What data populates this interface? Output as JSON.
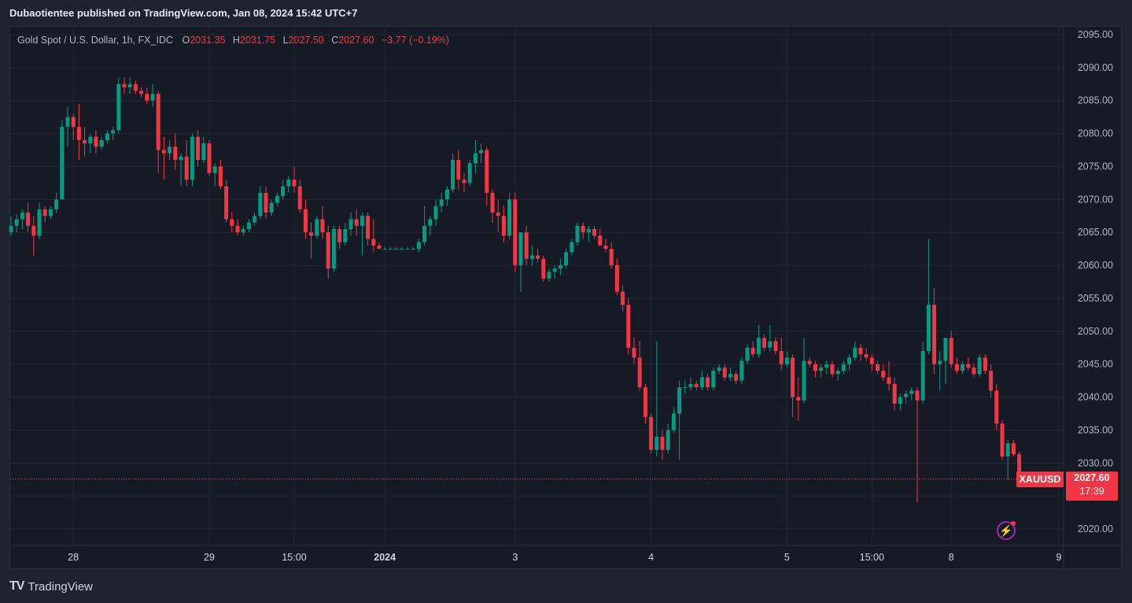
{
  "header": {
    "published": "Dubaotientee published on TradingView.com, Jan 08, 2024 15:42 UTC+7"
  },
  "legend": {
    "symbol": "Gold Spot / U.S. Dollar, 1h, FX_IDC",
    "o_label": "O",
    "o_value": "2031.35",
    "h_label": "H",
    "h_value": "2031.75",
    "l_label": "L",
    "l_value": "2027.50",
    "c_label": "C",
    "c_value": "2027.60",
    "change": "−3.77 (−0.19%)"
  },
  "price_tags": {
    "symbol": "XAUUSD",
    "last": "2027.60",
    "countdown": "17:39"
  },
  "footer": {
    "brand": "TradingView",
    "logo": "TV"
  },
  "icons": {
    "bolt": "lightning-icon"
  },
  "colors": {
    "up": "#089981",
    "down": "#f23645",
    "background": "#161a25",
    "grid": "#232733"
  },
  "chart_data": {
    "type": "candlestick",
    "symbol": "XAUUSD",
    "interval": "1h",
    "ylim": [
      2015,
      2097
    ],
    "y_ticks": [
      "2095.00",
      "2090.00",
      "2085.00",
      "2080.00",
      "2075.00",
      "2070.00",
      "2065.00",
      "2060.00",
      "2055.00",
      "2050.00",
      "2045.00",
      "2040.00",
      "2035.00",
      "2030.00",
      "2020.00"
    ],
    "x_ticks": [
      {
        "label": "28",
        "index": 11,
        "bold": false
      },
      {
        "label": "29",
        "index": 35,
        "bold": false
      },
      {
        "label": "15:00",
        "index": 50,
        "bold": false
      },
      {
        "label": "2024",
        "index": 66,
        "bold": true
      },
      {
        "label": "3",
        "index": 89,
        "bold": false
      },
      {
        "label": "4",
        "index": 113,
        "bold": false
      },
      {
        "label": "5",
        "index": 137,
        "bold": false
      },
      {
        "label": "15:00",
        "index": 152,
        "bold": false
      },
      {
        "label": "8",
        "index": 166,
        "bold": false
      },
      {
        "label": "9",
        "index": 185,
        "bold": false
      }
    ],
    "grid": true,
    "last_price": 2027.6,
    "candles": [
      [
        2065.0,
        2067.5,
        2064.5,
        2066.0
      ],
      [
        2066.0,
        2067.8,
        2065.0,
        2067.0
      ],
      [
        2067.0,
        2068.5,
        2065.5,
        2068.0
      ],
      [
        2068.0,
        2069.5,
        2065.0,
        2066.0
      ],
      [
        2066.0,
        2067.5,
        2061.5,
        2064.5
      ],
      [
        2064.5,
        2069.5,
        2064.0,
        2068.5
      ],
      [
        2068.5,
        2069.0,
        2066.5,
        2067.5
      ],
      [
        2067.5,
        2069.0,
        2067.0,
        2068.5
      ],
      [
        2068.5,
        2071.0,
        2068.0,
        2070.0
      ],
      [
        2070.0,
        2082.0,
        2070.0,
        2081.0
      ],
      [
        2081.0,
        2084.0,
        2078.0,
        2082.5
      ],
      [
        2082.5,
        2083.0,
        2079.0,
        2081.0
      ],
      [
        2081.0,
        2084.5,
        2076.0,
        2079.0
      ],
      [
        2079.0,
        2081.0,
        2076.5,
        2078.5
      ],
      [
        2078.5,
        2080.0,
        2077.0,
        2079.5
      ],
      [
        2079.5,
        2080.5,
        2077.0,
        2078.0
      ],
      [
        2078.0,
        2079.5,
        2077.5,
        2079.0
      ],
      [
        2079.0,
        2080.5,
        2078.5,
        2080.0
      ],
      [
        2080.0,
        2081.0,
        2079.0,
        2080.5
      ],
      [
        2080.5,
        2088.5,
        2080.0,
        2087.5
      ],
      [
        2087.5,
        2088.5,
        2086.0,
        2087.0
      ],
      [
        2087.0,
        2088.5,
        2086.0,
        2087.5
      ],
      [
        2087.5,
        2088.0,
        2086.0,
        2086.5
      ],
      [
        2086.5,
        2087.0,
        2085.5,
        2086.0
      ],
      [
        2086.0,
        2087.0,
        2084.5,
        2085.0
      ],
      [
        2085.0,
        2087.5,
        2084.0,
        2086.0
      ],
      [
        2086.0,
        2086.5,
        2074.0,
        2077.5
      ],
      [
        2077.5,
        2079.5,
        2073.0,
        2077.0
      ],
      [
        2077.0,
        2079.0,
        2076.0,
        2078.0
      ],
      [
        2078.0,
        2080.0,
        2074.5,
        2076.0
      ],
      [
        2076.0,
        2077.0,
        2072.0,
        2076.5
      ],
      [
        2076.5,
        2079.0,
        2072.0,
        2073.0
      ],
      [
        2073.0,
        2080.0,
        2072.0,
        2079.5
      ],
      [
        2079.5,
        2080.5,
        2075.0,
        2076.0
      ],
      [
        2076.0,
        2079.5,
        2075.5,
        2078.5
      ],
      [
        2078.5,
        2079.0,
        2073.5,
        2074.0
      ],
      [
        2074.0,
        2075.5,
        2072.0,
        2075.0
      ],
      [
        2075.0,
        2076.0,
        2071.5,
        2072.0
      ],
      [
        2072.0,
        2073.0,
        2066.5,
        2067.0
      ],
      [
        2067.0,
        2068.0,
        2065.0,
        2066.0
      ],
      [
        2066.0,
        2067.0,
        2064.5,
        2065.0
      ],
      [
        2065.0,
        2066.0,
        2064.5,
        2065.5
      ],
      [
        2065.5,
        2067.0,
        2065.0,
        2066.5
      ],
      [
        2066.5,
        2068.0,
        2066.0,
        2067.5
      ],
      [
        2067.5,
        2072.0,
        2067.0,
        2071.0
      ],
      [
        2071.0,
        2072.0,
        2067.0,
        2068.0
      ],
      [
        2068.0,
        2070.0,
        2067.5,
        2069.5
      ],
      [
        2069.5,
        2071.0,
        2069.0,
        2070.5
      ],
      [
        2070.5,
        2073.0,
        2070.0,
        2072.0
      ],
      [
        2072.0,
        2073.5,
        2071.0,
        2073.0
      ],
      [
        2073.0,
        2075.0,
        2071.0,
        2072.0
      ],
      [
        2072.0,
        2073.0,
        2068.0,
        2068.5
      ],
      [
        2068.5,
        2070.0,
        2064.0,
        2065.0
      ],
      [
        2065.0,
        2066.5,
        2061.0,
        2064.5
      ],
      [
        2064.5,
        2067.5,
        2064.0,
        2067.0
      ],
      [
        2067.0,
        2069.0,
        2064.0,
        2065.0
      ],
      [
        2065.0,
        2066.0,
        2058.0,
        2059.5
      ],
      [
        2059.5,
        2066.0,
        2059.0,
        2065.5
      ],
      [
        2065.5,
        2066.0,
        2062.5,
        2063.5
      ],
      [
        2063.5,
        2066.5,
        2063.0,
        2065.5
      ],
      [
        2065.5,
        2068.0,
        2064.5,
        2067.0
      ],
      [
        2067.0,
        2068.5,
        2064.5,
        2066.0
      ],
      [
        2066.0,
        2068.0,
        2061.5,
        2067.5
      ],
      [
        2067.5,
        2068.0,
        2063.0,
        2064.0
      ],
      [
        2064.0,
        2067.0,
        2062.0,
        2063.0
      ],
      [
        2063.0,
        2063.5,
        2062.5,
        2062.5
      ],
      [
        2062.5,
        2062.8,
        2062.5,
        2062.5
      ],
      [
        2062.5,
        2062.8,
        2062.5,
        2062.5
      ],
      [
        2062.5,
        2062.8,
        2062.5,
        2062.5
      ],
      [
        2062.5,
        2062.8,
        2062.5,
        2062.5
      ],
      [
        2062.5,
        2062.8,
        2062.5,
        2062.5
      ],
      [
        2062.5,
        2062.8,
        2062.5,
        2062.5
      ],
      [
        2062.5,
        2064.0,
        2062.0,
        2063.5
      ],
      [
        2063.5,
        2069.0,
        2063.0,
        2066.0
      ],
      [
        2066.0,
        2067.5,
        2064.5,
        2067.0
      ],
      [
        2067.0,
        2070.0,
        2066.0,
        2069.0
      ],
      [
        2069.0,
        2071.0,
        2068.0,
        2070.0
      ],
      [
        2070.0,
        2072.0,
        2069.0,
        2071.5
      ],
      [
        2071.5,
        2077.0,
        2071.0,
        2076.0
      ],
      [
        2076.0,
        2077.5,
        2071.5,
        2073.0
      ],
      [
        2073.0,
        2074.0,
        2071.0,
        2072.5
      ],
      [
        2072.5,
        2076.0,
        2072.0,
        2075.5
      ],
      [
        2075.5,
        2079.0,
        2074.0,
        2077.0
      ],
      [
        2077.0,
        2078.5,
        2075.5,
        2077.5
      ],
      [
        2077.5,
        2078.0,
        2069.0,
        2071.0
      ],
      [
        2071.0,
        2071.5,
        2066.5,
        2068.0
      ],
      [
        2068.0,
        2070.0,
        2065.0,
        2067.5
      ],
      [
        2067.5,
        2069.0,
        2063.5,
        2064.5
      ],
      [
        2064.5,
        2071.0,
        2064.0,
        2070.0
      ],
      [
        2070.0,
        2071.0,
        2059.0,
        2060.0
      ],
      [
        2060.0,
        2065.0,
        2056.0,
        2065.0
      ],
      [
        2065.0,
        2066.0,
        2060.0,
        2061.0
      ],
      [
        2061.0,
        2063.0,
        2060.0,
        2061.5
      ],
      [
        2061.5,
        2062.5,
        2060.5,
        2061.0
      ],
      [
        2061.0,
        2061.5,
        2057.5,
        2058.0
      ],
      [
        2058.0,
        2059.5,
        2057.5,
        2059.0
      ],
      [
        2059.0,
        2060.0,
        2058.0,
        2059.5
      ],
      [
        2059.5,
        2061.0,
        2058.5,
        2060.0
      ],
      [
        2060.0,
        2062.5,
        2059.5,
        2062.0
      ],
      [
        2062.0,
        2064.0,
        2061.5,
        2063.5
      ],
      [
        2063.5,
        2066.5,
        2063.0,
        2066.0
      ],
      [
        2066.0,
        2066.5,
        2064.0,
        2065.0
      ],
      [
        2065.0,
        2066.0,
        2063.5,
        2065.5
      ],
      [
        2065.5,
        2066.0,
        2064.0,
        2064.5
      ],
      [
        2064.5,
        2065.5,
        2063.0,
        2063.0
      ],
      [
        2063.0,
        2064.0,
        2062.0,
        2062.5
      ],
      [
        2062.5,
        2063.5,
        2059.5,
        2060.0
      ],
      [
        2060.0,
        2061.0,
        2055.5,
        2056.0
      ],
      [
        2056.0,
        2057.0,
        2053.0,
        2054.0
      ],
      [
        2054.0,
        2055.0,
        2046.5,
        2047.5
      ],
      [
        2047.5,
        2049.0,
        2045.0,
        2046.0
      ],
      [
        2046.0,
        2048.5,
        2041.0,
        2041.5
      ],
      [
        2041.5,
        2042.0,
        2036.0,
        2037.0
      ],
      [
        2037.0,
        2037.5,
        2031.5,
        2032.0
      ],
      [
        2032.0,
        2048.5,
        2031.0,
        2034.0
      ],
      [
        2034.0,
        2035.0,
        2030.5,
        2032.0
      ],
      [
        2032.0,
        2036.0,
        2031.5,
        2035.0
      ],
      [
        2035.0,
        2038.5,
        2034.5,
        2037.5
      ],
      [
        2037.5,
        2042.5,
        2030.5,
        2041.5
      ],
      [
        2041.5,
        2042.5,
        2040.5,
        2041.5
      ],
      [
        2041.5,
        2043.0,
        2041.0,
        2042.0
      ],
      [
        2042.0,
        2042.5,
        2041.0,
        2041.5
      ],
      [
        2041.5,
        2044.0,
        2041.0,
        2043.0
      ],
      [
        2043.0,
        2043.5,
        2041.0,
        2041.5
      ],
      [
        2041.5,
        2044.5,
        2041.0,
        2044.0
      ],
      [
        2044.0,
        2045.0,
        2043.5,
        2044.5
      ],
      [
        2044.5,
        2045.0,
        2042.5,
        2043.0
      ],
      [
        2043.0,
        2044.5,
        2042.5,
        2043.5
      ],
      [
        2043.5,
        2044.0,
        2042.0,
        2042.5
      ],
      [
        2042.5,
        2046.0,
        2042.0,
        2045.5
      ],
      [
        2045.5,
        2048.0,
        2045.0,
        2047.5
      ],
      [
        2047.5,
        2048.5,
        2046.0,
        2046.5
      ],
      [
        2046.5,
        2051.0,
        2046.0,
        2049.0
      ],
      [
        2049.0,
        2049.5,
        2047.0,
        2047.5
      ],
      [
        2047.5,
        2051.0,
        2047.0,
        2048.5
      ],
      [
        2048.5,
        2049.0,
        2046.5,
        2047.0
      ],
      [
        2047.0,
        2049.0,
        2044.0,
        2045.0
      ],
      [
        2045.0,
        2047.0,
        2044.5,
        2046.0
      ],
      [
        2046.0,
        2046.5,
        2037.0,
        2040.0
      ],
      [
        2040.0,
        2043.0,
        2036.5,
        2039.5
      ],
      [
        2039.5,
        2049.0,
        2039.0,
        2045.5
      ],
      [
        2045.5,
        2046.0,
        2044.5,
        2045.0
      ],
      [
        2045.0,
        2045.5,
        2043.0,
        2044.0
      ],
      [
        2044.0,
        2045.0,
        2043.0,
        2044.5
      ],
      [
        2044.5,
        2045.5,
        2043.5,
        2045.0
      ],
      [
        2045.0,
        2045.5,
        2043.0,
        2043.5
      ],
      [
        2043.5,
        2044.5,
        2042.5,
        2044.0
      ],
      [
        2044.0,
        2045.5,
        2043.5,
        2045.0
      ],
      [
        2045.0,
        2046.5,
        2044.0,
        2046.0
      ],
      [
        2046.0,
        2048.5,
        2045.5,
        2047.5
      ],
      [
        2047.5,
        2048.0,
        2045.5,
        2046.5
      ],
      [
        2046.5,
        2047.5,
        2045.5,
        2046.0
      ],
      [
        2046.0,
        2046.5,
        2044.0,
        2045.0
      ],
      [
        2045.0,
        2045.5,
        2043.5,
        2044.0
      ],
      [
        2044.0,
        2045.0,
        2042.5,
        2043.0
      ],
      [
        2043.0,
        2045.5,
        2041.0,
        2042.0
      ],
      [
        2042.0,
        2043.0,
        2038.0,
        2039.0
      ],
      [
        2039.0,
        2040.5,
        2038.0,
        2040.0
      ],
      [
        2040.0,
        2041.0,
        2039.0,
        2040.5
      ],
      [
        2040.5,
        2041.5,
        2039.5,
        2041.0
      ],
      [
        2041.0,
        2041.5,
        2024.0,
        2039.5
      ],
      [
        2039.5,
        2048.5,
        2039.0,
        2047.0
      ],
      [
        2047.0,
        2064.0,
        2046.5,
        2054.0
      ],
      [
        2054.0,
        2056.5,
        2043.5,
        2045.0
      ],
      [
        2045.0,
        2047.0,
        2041.0,
        2045.5
      ],
      [
        2045.5,
        2048.5,
        2042.0,
        2049.0
      ],
      [
        2049.0,
        2050.0,
        2044.5,
        2045.0
      ],
      [
        2045.0,
        2046.0,
        2043.5,
        2044.0
      ],
      [
        2044.0,
        2045.5,
        2043.5,
        2045.0
      ],
      [
        2045.0,
        2046.0,
        2044.0,
        2044.5
      ],
      [
        2044.5,
        2045.0,
        2043.0,
        2043.5
      ],
      [
        2043.5,
        2046.5,
        2043.0,
        2046.0
      ],
      [
        2046.0,
        2046.5,
        2043.5,
        2044.0
      ],
      [
        2044.0,
        2045.0,
        2040.0,
        2041.0
      ],
      [
        2041.0,
        2042.0,
        2035.0,
        2036.0
      ],
      [
        2036.0,
        2036.5,
        2030.5,
        2031.0
      ],
      [
        2031.0,
        2033.5,
        2027.5,
        2033.0
      ],
      [
        2033.0,
        2033.5,
        2031.0,
        2031.35
      ],
      [
        2031.35,
        2031.75,
        2027.5,
        2027.6
      ]
    ]
  }
}
